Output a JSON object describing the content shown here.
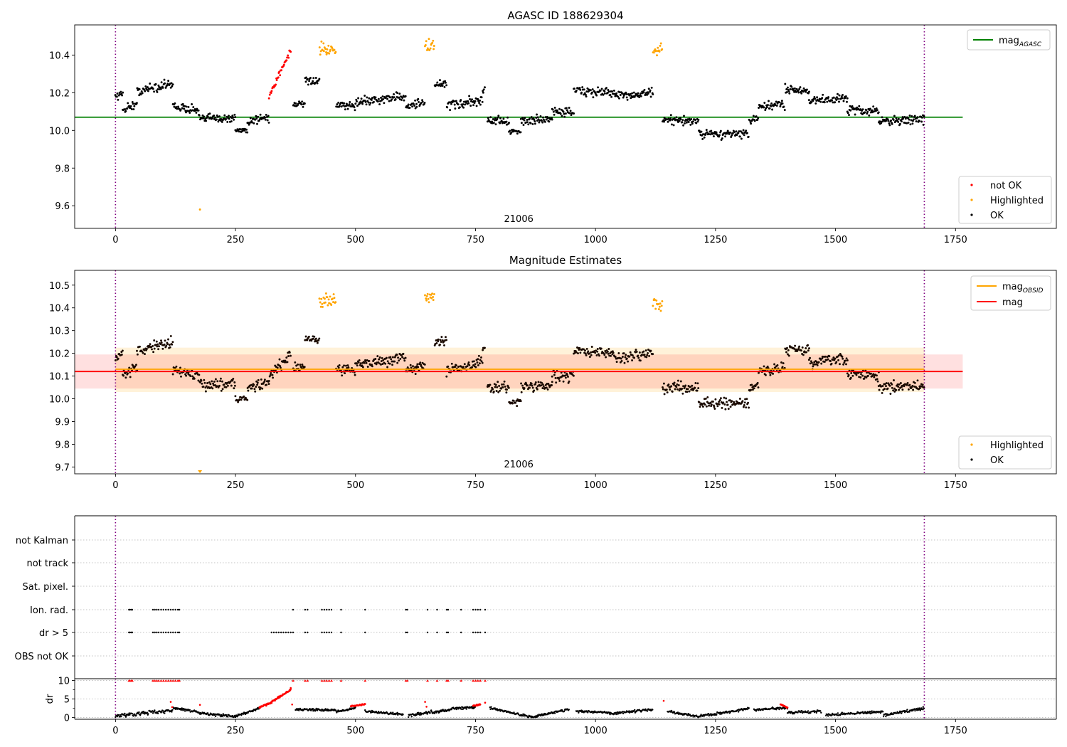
{
  "chart_data": [
    {
      "type": "scatter",
      "title": "AGASC ID 188629304",
      "xlim": [
        -85,
        1960
      ],
      "ylim": [
        9.48,
        10.56
      ],
      "xticks": [
        0,
        250,
        500,
        750,
        1000,
        1250,
        1500,
        1750
      ],
      "yticks": [
        9.6,
        9.8,
        10.0,
        10.2,
        10.4
      ],
      "ytick_labels": [
        "9.6",
        "9.8",
        "10.0",
        "10.2",
        "10.4"
      ],
      "annotation": "21006",
      "annotation_x": 840,
      "hlines": [
        {
          "name": "mag_AGASC",
          "value": 10.07,
          "x": [
            -85,
            1765
          ],
          "color": "#008000"
        }
      ],
      "vlines": [
        0,
        1685
      ],
      "legend_lines": [
        {
          "label": "mag",
          "sub": "AGASC",
          "color": "#008000"
        }
      ],
      "legend_points": [
        {
          "label": "not OK",
          "color": "#ff0000"
        },
        {
          "label": "Highlighted",
          "color": "#ffa500"
        },
        {
          "label": "OK",
          "color": "#000000"
        }
      ],
      "series": [
        {
          "name": "OK",
          "color": "#000000",
          "segments": [
            [
              0,
              15,
              10.18,
              10.2,
              0.03
            ],
            [
              15,
              45,
              10.11,
              10.14,
              0.03
            ],
            [
              45,
              120,
              10.21,
              10.25,
              0.03
            ],
            [
              120,
              175,
              10.13,
              10.1,
              0.03
            ],
            [
              175,
              250,
              10.06,
              10.07,
              0.03
            ],
            [
              250,
              275,
              10.0,
              10.0,
              0.02
            ],
            [
              275,
              320,
              10.05,
              10.07,
              0.03
            ],
            [
              370,
              395,
              10.14,
              10.14,
              0.02
            ],
            [
              395,
              425,
              10.26,
              10.26,
              0.02
            ],
            [
              460,
              500,
              10.13,
              10.13,
              0.03
            ],
            [
              500,
              605,
              10.15,
              10.18,
              0.03
            ],
            [
              605,
              645,
              10.13,
              10.15,
              0.03
            ],
            [
              665,
              690,
              10.24,
              10.25,
              0.03
            ],
            [
              690,
              765,
              10.13,
              10.16,
              0.03
            ],
            [
              765,
              770,
              10.22,
              10.22,
              0.02
            ],
            [
              775,
              820,
              10.05,
              10.05,
              0.03
            ],
            [
              820,
              845,
              9.99,
              9.99,
              0.02
            ],
            [
              845,
              910,
              10.05,
              10.06,
              0.03
            ],
            [
              910,
              955,
              10.1,
              10.1,
              0.03
            ],
            [
              955,
              1040,
              10.21,
              10.2,
              0.03
            ],
            [
              1040,
              1120,
              10.18,
              10.2,
              0.03
            ],
            [
              1140,
              1215,
              10.05,
              10.05,
              0.03
            ],
            [
              1215,
              1320,
              9.98,
              9.98,
              0.03
            ],
            [
              1320,
              1340,
              10.05,
              10.06,
              0.03
            ],
            [
              1340,
              1395,
              10.12,
              10.14,
              0.03
            ],
            [
              1395,
              1445,
              10.22,
              10.21,
              0.03
            ],
            [
              1445,
              1525,
              10.16,
              10.17,
              0.03
            ],
            [
              1525,
              1590,
              10.11,
              10.1,
              0.03
            ],
            [
              1590,
              1685,
              10.05,
              10.06,
              0.03
            ]
          ]
        },
        {
          "name": "Highlighted",
          "color": "#ffa500",
          "segments": [
            [
              425,
              460,
              10.43,
              10.43,
              0.04
            ],
            [
              645,
              665,
              10.44,
              10.45,
              0.04
            ],
            [
              1120,
              1140,
              10.42,
              10.42,
              0.04
            ]
          ],
          "points": [
            [
              176,
              9.58
            ]
          ]
        },
        {
          "name": "not OK",
          "color": "#ff0000",
          "segments": [
            [
              320,
              365,
              10.18,
              10.43,
              0.02
            ]
          ]
        }
      ]
    },
    {
      "type": "scatter",
      "title": "Magnitude Estimates",
      "xlim": [
        -85,
        1960
      ],
      "ylim": [
        9.67,
        10.565
      ],
      "xticks": [
        0,
        250,
        500,
        750,
        1000,
        1250,
        1500,
        1750
      ],
      "yticks": [
        9.7,
        9.8,
        9.9,
        10.0,
        10.1,
        10.2,
        10.3,
        10.4,
        10.5
      ],
      "ytick_labels": [
        "9.7",
        "9.8",
        "9.9",
        "10.0",
        "10.1",
        "10.2",
        "10.3",
        "10.4",
        "10.5"
      ],
      "annotation": "21006",
      "annotation_x": 840,
      "hlines": [
        {
          "name": "mag_OBSID",
          "value": 10.13,
          "x": [
            0,
            1685
          ],
          "color": "#ffa500"
        },
        {
          "name": "mag",
          "value": 10.12,
          "x": [
            -85,
            1765
          ],
          "color": "#ff0000"
        }
      ],
      "bands": [
        {
          "y": [
            10.03,
            10.225
          ],
          "x": [
            0,
            1685
          ],
          "color": "#ffa500",
          "opacity": 0.15
        },
        {
          "y": [
            10.045,
            10.195
          ],
          "x": [
            -85,
            1765
          ],
          "color": "#ff0000",
          "opacity": 0.12
        }
      ],
      "vlines": [
        0,
        1685
      ],
      "legend_lines": [
        {
          "label": "mag",
          "sub": "OBSID",
          "color": "#ffa500"
        },
        {
          "label": "mag",
          "sub": "",
          "color": "#ff0000"
        }
      ],
      "legend_points": [
        {
          "label": "Highlighted",
          "color": "#ffa500"
        },
        {
          "label": "OK",
          "color": "#000000"
        }
      ],
      "series": [
        {
          "name": "OK",
          "color": "#1a0a00",
          "segments": [
            [
              0,
              15,
              10.18,
              10.2,
              0.03
            ],
            [
              15,
              45,
              10.11,
              10.14,
              0.03
            ],
            [
              45,
              120,
              10.21,
              10.25,
              0.03
            ],
            [
              120,
              175,
              10.13,
              10.1,
              0.03
            ],
            [
              175,
              250,
              10.06,
              10.07,
              0.03
            ],
            [
              250,
              275,
              10.0,
              10.0,
              0.02
            ],
            [
              275,
              320,
              10.05,
              10.07,
              0.03
            ],
            [
              320,
              365,
              10.1,
              10.2,
              0.03
            ],
            [
              370,
              395,
              10.14,
              10.14,
              0.02
            ],
            [
              395,
              425,
              10.26,
              10.26,
              0.02
            ],
            [
              460,
              500,
              10.13,
              10.13,
              0.03
            ],
            [
              500,
              605,
              10.15,
              10.18,
              0.03
            ],
            [
              605,
              645,
              10.13,
              10.15,
              0.03
            ],
            [
              665,
              690,
              10.24,
              10.25,
              0.03
            ],
            [
              690,
              765,
              10.13,
              10.16,
              0.03
            ],
            [
              765,
              770,
              10.22,
              10.22,
              0.02
            ],
            [
              775,
              820,
              10.05,
              10.05,
              0.03
            ],
            [
              820,
              845,
              9.99,
              9.99,
              0.02
            ],
            [
              845,
              910,
              10.05,
              10.06,
              0.03
            ],
            [
              910,
              955,
              10.1,
              10.1,
              0.03
            ],
            [
              955,
              1040,
              10.21,
              10.2,
              0.03
            ],
            [
              1040,
              1120,
              10.18,
              10.2,
              0.03
            ],
            [
              1140,
              1215,
              10.05,
              10.05,
              0.03
            ],
            [
              1215,
              1320,
              9.98,
              9.98,
              0.03
            ],
            [
              1320,
              1340,
              10.05,
              10.06,
              0.03
            ],
            [
              1340,
              1395,
              10.12,
              10.14,
              0.03
            ],
            [
              1395,
              1445,
              10.22,
              10.21,
              0.03
            ],
            [
              1445,
              1525,
              10.16,
              10.17,
              0.03
            ],
            [
              1525,
              1590,
              10.11,
              10.1,
              0.03
            ],
            [
              1590,
              1685,
              10.05,
              10.06,
              0.03
            ]
          ]
        },
        {
          "name": "Highlighted",
          "color": "#ffa500",
          "segments": [
            [
              425,
              460,
              10.43,
              10.43,
              0.04
            ],
            [
              645,
              665,
              10.44,
              10.45,
              0.04
            ],
            [
              1120,
              1140,
              10.42,
              10.42,
              0.04
            ]
          ],
          "points": [
            [
              176,
              9.68
            ]
          ]
        }
      ]
    },
    {
      "type": "scatter",
      "title": "",
      "xlim": [
        -85,
        1960
      ],
      "category_rows": [
        "not Kalman",
        "not track",
        "Sat. pixel.",
        "Ion. rad.",
        "dr > 5",
        "OBS not OK"
      ],
      "flag_points": {
        "Ion. rad.": [
          28,
          30,
          33,
          35,
          78,
          82,
          86,
          90,
          95,
          100,
          105,
          110,
          115,
          120,
          125,
          130,
          133,
          370,
          395,
          400,
          430,
          435,
          440,
          445,
          450,
          470,
          520,
          605,
          608,
          650,
          670,
          690,
          693,
          720,
          745,
          750,
          755,
          760,
          770
        ],
        "dr > 5": [
          28,
          30,
          33,
          35,
          78,
          82,
          86,
          90,
          95,
          100,
          105,
          110,
          115,
          120,
          125,
          130,
          133,
          325,
          330,
          335,
          340,
          345,
          350,
          355,
          360,
          365,
          370,
          395,
          400,
          430,
          435,
          440,
          445,
          450,
          470,
          520,
          605,
          608,
          650,
          670,
          690,
          693,
          720,
          745,
          750,
          755,
          760,
          770
        ]
      },
      "vlines": [
        0,
        1685
      ]
    },
    {
      "type": "scatter",
      "title": "",
      "ylabel": "dr",
      "xlim": [
        -85,
        1960
      ],
      "ylim": [
        -0.5,
        10.5
      ],
      "yticks": [
        0,
        5,
        10
      ],
      "ytick_labels": [
        "0",
        "5",
        "10"
      ],
      "xticks": [
        0,
        250,
        500,
        750,
        1000,
        1250,
        1500,
        1750
      ],
      "capped_points": [
        28,
        30,
        33,
        35,
        78,
        82,
        86,
        90,
        95,
        100,
        105,
        110,
        115,
        120,
        125,
        130,
        133,
        370,
        395,
        400,
        430,
        435,
        440,
        445,
        450,
        470,
        520,
        605,
        608,
        650,
        670,
        690,
        693,
        720,
        745,
        750,
        755,
        760,
        770
      ],
      "dr_ok": [
        [
          0,
          120,
          0.4,
          2.0,
          0.6
        ],
        [
          120,
          175,
          2.5,
          1.5,
          0.4
        ],
        [
          175,
          250,
          1.2,
          0.2,
          0.4
        ],
        [
          250,
          300,
          0.3,
          2.5,
          0.4
        ],
        [
          375,
          460,
          2.2,
          2.0,
          0.4
        ],
        [
          460,
          500,
          1.5,
          2.5,
          0.4
        ],
        [
          520,
          600,
          1.6,
          0.8,
          0.4
        ],
        [
          610,
          700,
          0.5,
          2.2,
          0.5
        ],
        [
          700,
          750,
          2.3,
          2.8,
          0.4
        ],
        [
          780,
          870,
          2.5,
          0.0,
          0.4
        ],
        [
          870,
          945,
          0.2,
          2.2,
          0.4
        ],
        [
          960,
          1030,
          1.7,
          1.3,
          0.4
        ],
        [
          1030,
          1120,
          1.0,
          2.2,
          0.4
        ],
        [
          1150,
          1215,
          1.6,
          0.2,
          0.4
        ],
        [
          1215,
          1320,
          0.3,
          2.3,
          0.4
        ],
        [
          1330,
          1400,
          2.0,
          2.6,
          0.4
        ],
        [
          1400,
          1470,
          1.3,
          1.6,
          0.4
        ],
        [
          1480,
          1600,
          0.6,
          1.6,
          0.4
        ],
        [
          1600,
          1685,
          0.6,
          2.5,
          0.5
        ]
      ],
      "dr_not_ok": [
        [
          300,
          325,
          2.8,
          4.0,
          0.3
        ],
        [
          325,
          365,
          4.2,
          7.5,
          0.3
        ],
        [
          490,
          520,
          3.0,
          3.6,
          0.2
        ],
        [
          745,
          760,
          3.1,
          3.5,
          0.2
        ],
        [
          1385,
          1400,
          3.6,
          2.6,
          0.2
        ]
      ],
      "dr_not_ok_points": [
        [
          115,
          4.2
        ],
        [
          118,
          2.8
        ],
        [
          176,
          3.4
        ],
        [
          365,
          8.0
        ],
        [
          368,
          3.5
        ],
        [
          645,
          4.2
        ],
        [
          648,
          2.9
        ],
        [
          770,
          4.0
        ],
        [
          1142,
          4.5
        ]
      ],
      "vlines": [
        0,
        1685
      ]
    }
  ]
}
